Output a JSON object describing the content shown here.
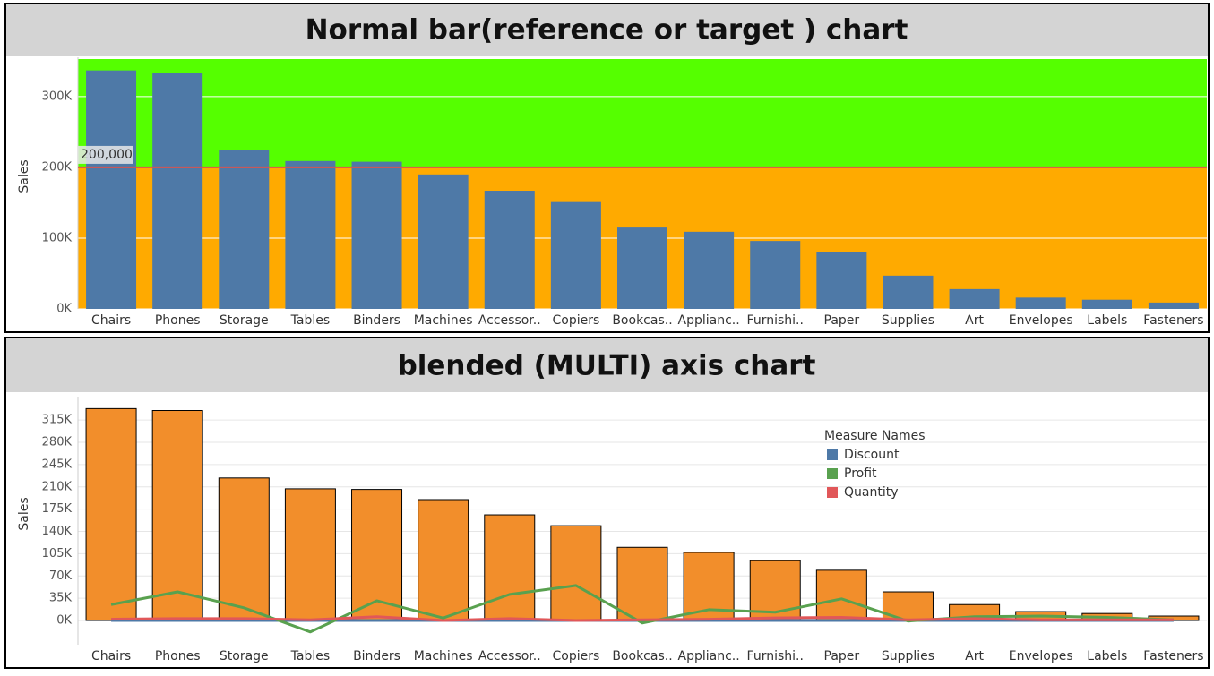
{
  "chart_data": [
    {
      "type": "bar",
      "title": "Normal bar(reference or target ) chart",
      "y_label": "Sales",
      "categories": [
        "Chairs",
        "Phones",
        "Storage",
        "Tables",
        "Binders",
        "Machines",
        "Accessor..",
        "Copiers",
        "Bookcas..",
        "Applianc..",
        "Furnishi..",
        "Paper",
        "Supplies",
        "Art",
        "Envelopes",
        "Labels",
        "Fasteners"
      ],
      "values": [
        337000,
        333000,
        225000,
        209000,
        208000,
        190000,
        167000,
        151000,
        115000,
        109000,
        96000,
        80000,
        47000,
        28000,
        16000,
        13000,
        9000
      ],
      "color": "#4e79a7",
      "ylim": [
        0,
        353000
      ],
      "yticks": [
        {
          "value": 0,
          "label": "0K"
        },
        {
          "value": 100000,
          "label": "100K"
        },
        {
          "value": 200000,
          "label": "200K"
        },
        {
          "value": 300000,
          "label": "300K"
        }
      ],
      "grid": true,
      "reference_line": {
        "value": 200000,
        "label": "200,000",
        "above_color": "#55ff00",
        "below_color": "#ffaa00",
        "color": "#d9534f"
      }
    },
    {
      "type": "combo",
      "title": "blended (MULTI) axis chart",
      "y_label": "Sales",
      "categories": [
        "Chairs",
        "Phones",
        "Storage",
        "Tables",
        "Binders",
        "Machines",
        "Accessor..",
        "Copiers",
        "Bookcas..",
        "Applianc..",
        "Furnishi..",
        "Paper",
        "Supplies",
        "Art",
        "Envelopes",
        "Labels",
        "Fasteners"
      ],
      "values": [
        333000,
        330000,
        224000,
        207000,
        206000,
        190000,
        166000,
        149000,
        115000,
        107000,
        94000,
        79000,
        45000,
        25000,
        14000,
        11000,
        7000
      ],
      "color": "#f28e2b",
      "ylim": [
        -38000,
        349000
      ],
      "yticks": [
        {
          "value": 0,
          "label": "0K"
        },
        {
          "value": 35000,
          "label": "35K"
        },
        {
          "value": 70000,
          "label": "70K"
        },
        {
          "value": 105000,
          "label": "105K"
        },
        {
          "value": 140000,
          "label": "140K"
        },
        {
          "value": 175000,
          "label": "175K"
        },
        {
          "value": 210000,
          "label": "210K"
        },
        {
          "value": 245000,
          "label": "245K"
        },
        {
          "value": 280000,
          "label": "280K"
        },
        {
          "value": 315000,
          "label": "315K"
        }
      ],
      "grid": true,
      "legend_title": "Measure Names",
      "series": [
        {
          "name": "Discount",
          "color": "#4e79a7",
          "values": [
            0,
            0,
            0,
            0,
            0,
            0,
            0,
            0,
            0,
            0,
            0,
            0,
            0,
            0,
            0,
            0,
            0
          ]
        },
        {
          "name": "Profit",
          "color": "#59a14f",
          "values": [
            25000,
            45000,
            20000,
            -18000,
            31000,
            4000,
            41000,
            55000,
            -4000,
            17000,
            13000,
            34000,
            -1000,
            6000,
            7000,
            5000,
            1000
          ]
        },
        {
          "name": "Quantity",
          "color": "#e15759",
          "values": [
            2000,
            3000,
            3000,
            1000,
            6000,
            0,
            3000,
            0,
            1000,
            2000,
            4000,
            5000,
            1000,
            3000,
            1000,
            1000,
            1000
          ]
        }
      ]
    }
  ]
}
